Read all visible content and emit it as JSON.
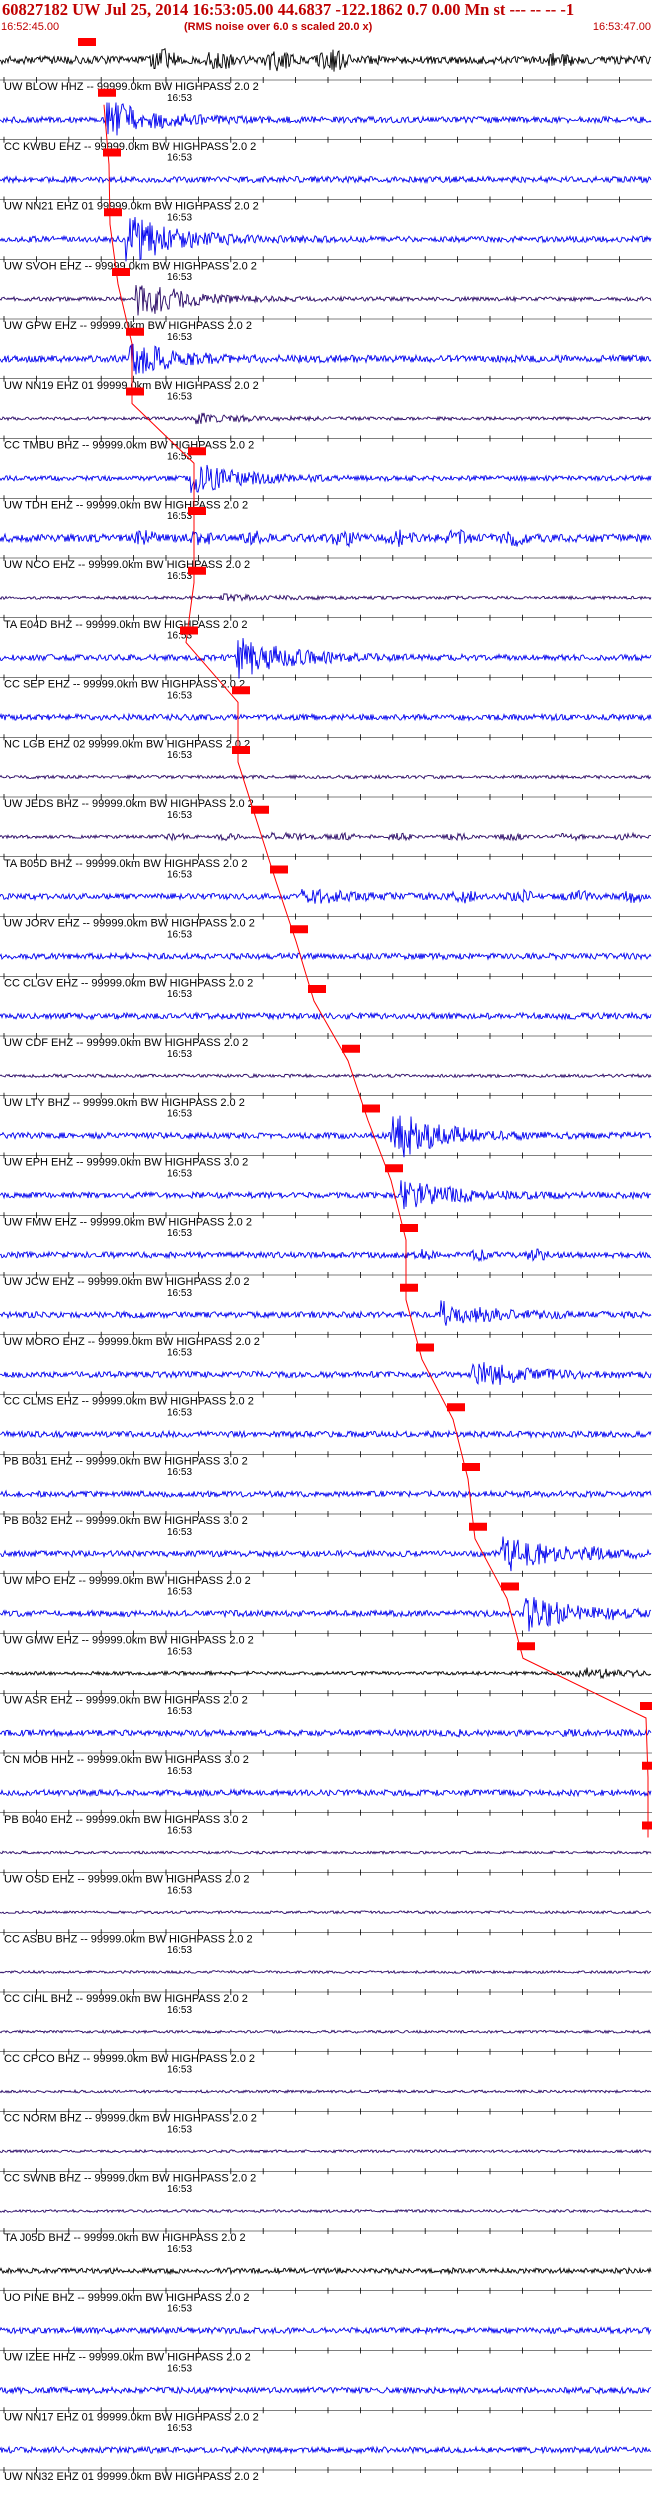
{
  "header": {
    "title": "60827182 UW Jul 25, 2014 16:53:05.00   44.6837 -122.1862  0.7 0.00 Mn st --- -- -- -1",
    "start_time": "16:52:45.00",
    "note": "(RMS noise over 6.0 s scaled 20.0 x)",
    "end_time": "16:53:47.00"
  },
  "time_tick_label": "16:53",
  "colors": {
    "header_text": "#c00000",
    "pick_marker": "#ff0000",
    "pick_line": "#ff0000",
    "trace_blue": "#0000ee",
    "trace_purple": "#2a0a66",
    "trace_black": "#000000",
    "background": "#ffffff"
  },
  "chart_data": {
    "type": "line",
    "title": "60827182 UW Jul 25, 2014 16:53:05.00   44.6837 -122.1862  0.7 0.00 Mn st --- -- -- -1",
    "x_range": [
      "16:52:45.00",
      "16:53:47.00"
    ],
    "x_tick_label": "16:53",
    "rms_note": "(RMS noise over 6.0 s scaled 20.0 x)",
    "series": [
      {
        "name": "UW BLOW HHZ -- 99999.0km BW HIGHPASS 2.0 2",
        "color": "black"
      },
      {
        "name": "CC KWBU EHZ -- 99999.0km BW HIGHPASS 2.0 2",
        "color": "blue"
      },
      {
        "name": "UW NN21 EHZ 01 99999.0km BW HIGHPASS 2.0 2",
        "color": "blue"
      },
      {
        "name": "UW SVOH EHZ -- 99999.0km BW HIGHPASS 2.0 2",
        "color": "blue"
      },
      {
        "name": "UW GPW EHZ -- 99999.0km BW HIGHPASS 2.0 2",
        "color": "purple"
      },
      {
        "name": "UW NN19 EHZ 01 99999.0km BW HIGHPASS 2.0 2",
        "color": "blue"
      },
      {
        "name": "CC TMBU BHZ -- 99999.0km BW HIGHPASS 2.0 2",
        "color": "purple"
      },
      {
        "name": "UW TDH EHZ -- 99999.0km BW HIGHPASS 2.0 2",
        "color": "blue"
      },
      {
        "name": "UW NCO EHZ -- 99999.0km BW HIGHPASS 2.0 2",
        "color": "blue"
      },
      {
        "name": "TA E04D BHZ -- 99999.0km BW HIGHPASS 2.0 2",
        "color": "purple"
      },
      {
        "name": "CC SEP EHZ -- 99999.0km BW HIGHPASS 2.0 2",
        "color": "blue"
      },
      {
        "name": "NC LGB EHZ 02 99999.0km BW HIGHPASS 2.0 2",
        "color": "blue"
      },
      {
        "name": "UW JEDS BHZ -- 99999.0km BW HIGHPASS 2.0 2",
        "color": "purple"
      },
      {
        "name": "TA B05D BHZ -- 99999.0km BW HIGHPASS 2.0 2",
        "color": "purple"
      },
      {
        "name": "UW JORV EHZ -- 99999.0km BW HIGHPASS 2.0 2",
        "color": "blue"
      },
      {
        "name": "CC CLGV EHZ -- 99999.0km BW HIGHPASS 2.0 2",
        "color": "blue"
      },
      {
        "name": "UW CDF EHZ -- 99999.0km BW HIGHPASS 2.0 2",
        "color": "blue"
      },
      {
        "name": "UW LTY BHZ -- 99999.0km BW HIGHPASS 2.0 2",
        "color": "purple"
      },
      {
        "name": "UW EPH EHZ -- 99999.0km BW HIGHPASS 3.0 2",
        "color": "blue"
      },
      {
        "name": "UW FMW EHZ -- 99999.0km BW HIGHPASS 2.0 2",
        "color": "blue"
      },
      {
        "name": "UW JCW EHZ -- 99999.0km BW HIGHPASS 2.0 2",
        "color": "blue"
      },
      {
        "name": "UW MORO EHZ -- 99999.0km BW HIGHPASS 2.0 2",
        "color": "blue"
      },
      {
        "name": "CC CLMS EHZ -- 99999.0km BW HIGHPASS 2.0 2",
        "color": "blue"
      },
      {
        "name": "PB B031 EHZ -- 99999.0km BW HIGHPASS 3.0 2",
        "color": "blue"
      },
      {
        "name": "PB B032 EHZ -- 99999.0km BW HIGHPASS 3.0 2",
        "color": "blue"
      },
      {
        "name": "UW MPO EHZ -- 99999.0km BW HIGHPASS 2.0 2",
        "color": "blue"
      },
      {
        "name": "UW GMW EHZ -- 99999.0km BW HIGHPASS 2.0 2",
        "color": "blue"
      },
      {
        "name": "UW ASR EHZ -- 99999.0km BW HIGHPASS 2.0 2",
        "color": "black"
      },
      {
        "name": "CN MOB HHZ -- 99999.0km BW HIGHPASS 3.0 2",
        "color": "blue"
      },
      {
        "name": "PB B040 EHZ -- 99999.0km BW HIGHPASS 3.0 2",
        "color": "blue"
      },
      {
        "name": "UW OSD EHZ -- 99999.0km BW HIGHPASS 2.0 2",
        "color": "purple"
      },
      {
        "name": "CC ASBU BHZ -- 99999.0km BW HIGHPASS 2.0 2",
        "color": "purple"
      },
      {
        "name": "CC CIHL BHZ -- 99999.0km BW HIGHPASS 2.0 2",
        "color": "purple"
      },
      {
        "name": "CC CPCO BHZ -- 99999.0km BW HIGHPASS 2.0 2",
        "color": "purple"
      },
      {
        "name": "CC NORM BHZ -- 99999.0km BW HIGHPASS 2.0 2",
        "color": "purple"
      },
      {
        "name": "CC SWNB BHZ -- 99999.0km BW HIGHPASS 2.0 2",
        "color": "purple"
      },
      {
        "name": "TA J05D BHZ -- 99999.0km BW HIGHPASS 2.0 2",
        "color": "purple"
      },
      {
        "name": "UO PINE BHZ -- 99999.0km BW HIGHPASS 2.0 2",
        "color": "black"
      },
      {
        "name": "UW IZEE HHZ -- 99999.0km BW HIGHPASS 2.0 2",
        "color": "blue"
      },
      {
        "name": "UW NN17 EHZ 01 99999.0km BW HIGHPASS 2.0 2",
        "color": "blue"
      },
      {
        "name": "UW NN32 EHZ 01 99999.0km BW HIGHPASS 2.0 2",
        "color": "blue"
      }
    ]
  }
}
